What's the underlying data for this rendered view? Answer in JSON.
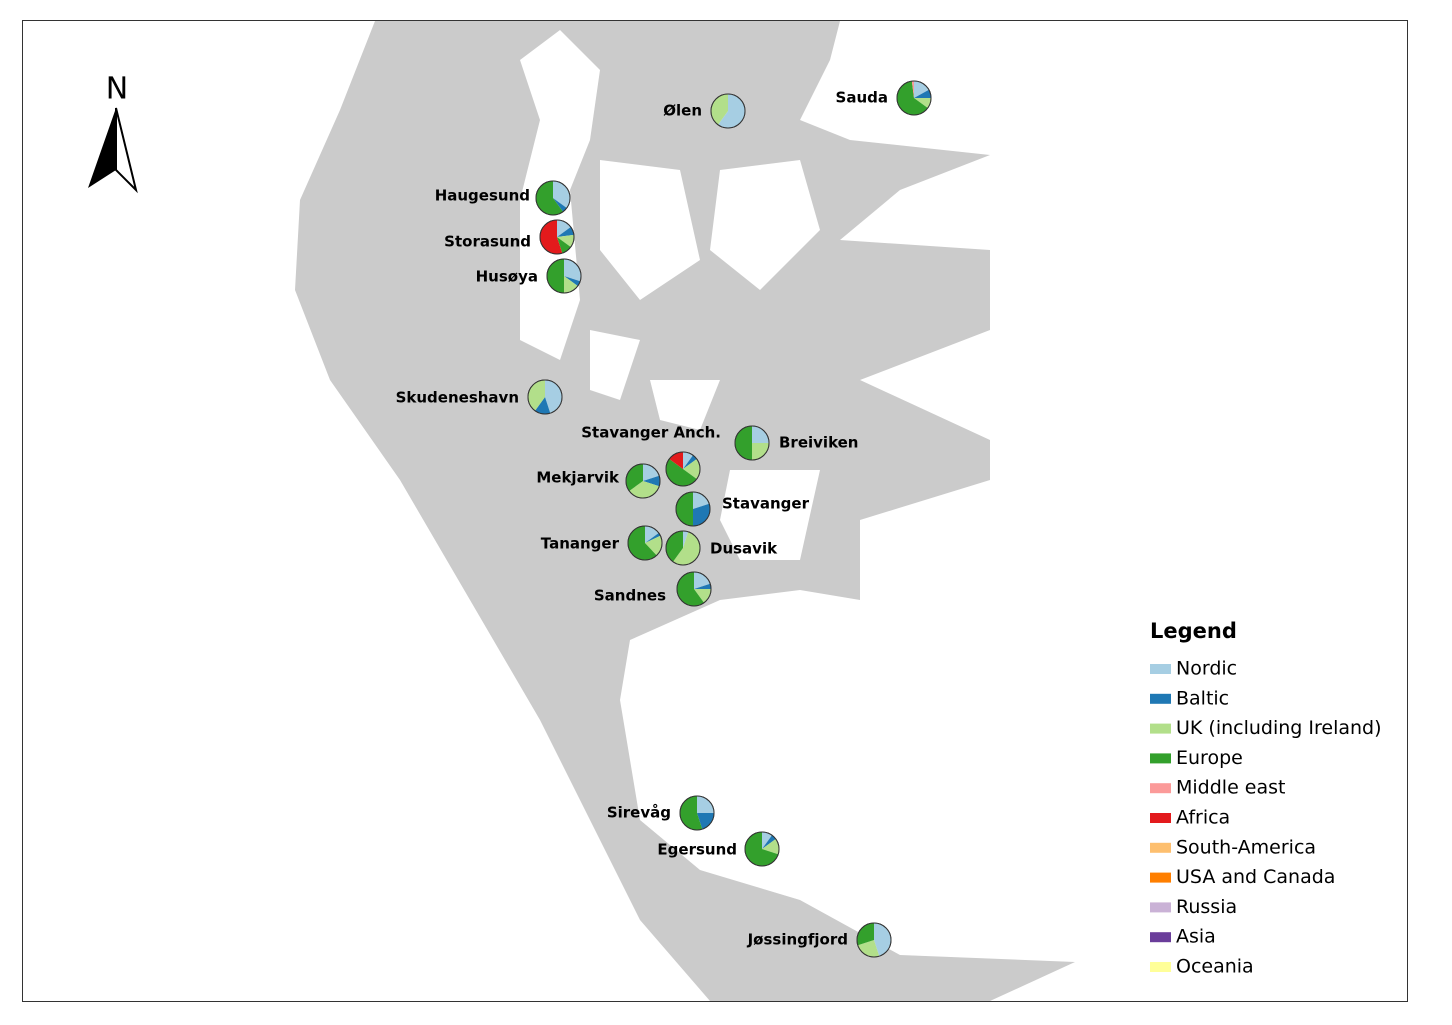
{
  "map": {
    "north_label": "N",
    "legend": {
      "title": "Legend",
      "items": [
        {
          "name": "Nordic",
          "color": "#a6cee3"
        },
        {
          "name": "Baltic",
          "color": "#1f78b4"
        },
        {
          "name": "UK (including Ireland)",
          "color": "#b2df8a"
        },
        {
          "name": "Europe",
          "color": "#33a02c"
        },
        {
          "name": "Middle east",
          "color": "#fb9a99"
        },
        {
          "name": "Africa",
          "color": "#e31a1c"
        },
        {
          "name": "South-America",
          "color": "#fdbf6f"
        },
        {
          "name": "USA and Canada",
          "color": "#ff7f00"
        },
        {
          "name": "Russia",
          "color": "#cab2d6"
        },
        {
          "name": "Asia",
          "color": "#6a3d9a"
        },
        {
          "name": "Oceania",
          "color": "#ffff99"
        }
      ]
    },
    "locations": [
      {
        "label": "Ølen",
        "values": [
          60,
          0,
          40,
          0,
          0,
          0,
          0,
          0,
          0,
          0,
          0
        ]
      },
      {
        "label": "Sauda",
        "values": [
          17,
          8,
          10,
          63,
          2,
          0,
          0,
          0,
          0,
          0,
          0
        ]
      },
      {
        "label": "Haugesund",
        "values": [
          35,
          5,
          0,
          60,
          0,
          0,
          0,
          0,
          0,
          0,
          0
        ]
      },
      {
        "label": "Storasund",
        "values": [
          15,
          8,
          12,
          10,
          0,
          55,
          0,
          0,
          0,
          0,
          0
        ]
      },
      {
        "label": "Husøya",
        "values": [
          30,
          5,
          15,
          50,
          0,
          0,
          0,
          0,
          0,
          0,
          0
        ]
      },
      {
        "label": "Skudeneshavn",
        "values": [
          45,
          15,
          40,
          0,
          0,
          0,
          0,
          0,
          0,
          0,
          0
        ]
      },
      {
        "label": "Stavanger Anch.",
        "values": [
          10,
          5,
          20,
          50,
          0,
          15,
          0,
          0,
          0,
          0,
          0
        ]
      },
      {
        "label": "Breiviken",
        "values": [
          25,
          0,
          25,
          50,
          0,
          0,
          0,
          0,
          0,
          0,
          0
        ]
      },
      {
        "label": "Mekjarvik",
        "values": [
          20,
          10,
          35,
          35,
          0,
          0,
          0,
          0,
          0,
          0,
          0
        ]
      },
      {
        "label": "Stavanger",
        "values": [
          20,
          30,
          0,
          50,
          0,
          0,
          0,
          0,
          0,
          0,
          0
        ]
      },
      {
        "label": "Tananger",
        "values": [
          15,
          3,
          20,
          62,
          0,
          0,
          0,
          0,
          0,
          0,
          0
        ]
      },
      {
        "label": "Dusavik",
        "values": [
          5,
          0,
          55,
          40,
          0,
          0,
          0,
          0,
          0,
          0,
          0
        ]
      },
      {
        "label": "Sandnes",
        "values": [
          20,
          5,
          15,
          60,
          0,
          0,
          0,
          0,
          0,
          0,
          0
        ]
      },
      {
        "label": "Sirevåg",
        "values": [
          25,
          20,
          0,
          55,
          0,
          0,
          0,
          0,
          0,
          0,
          0
        ]
      },
      {
        "label": "Egersund",
        "values": [
          10,
          5,
          15,
          70,
          0,
          0,
          0,
          0,
          0,
          0,
          0
        ]
      },
      {
        "label": "Jøssingfjord",
        "values": [
          45,
          0,
          25,
          30,
          0,
          0,
          0,
          0,
          0,
          0,
          0
        ]
      }
    ]
  }
}
